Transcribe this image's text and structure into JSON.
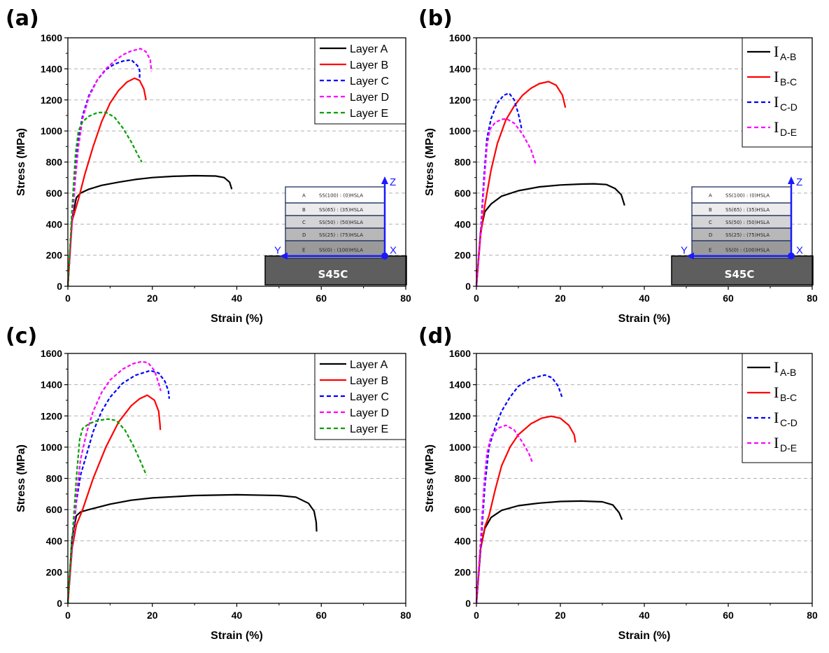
{
  "chart_data": [
    {
      "panel": "(a)",
      "type": "line",
      "xlabel": "Strain (%)",
      "ylabel": "Stress (MPa)",
      "xlim": [
        0,
        80
      ],
      "ylim": [
        0,
        1600
      ],
      "xticks": [
        0,
        20,
        40,
        60,
        80
      ],
      "yticks": [
        0,
        200,
        400,
        600,
        800,
        1000,
        1200,
        1400,
        1600
      ],
      "grid": "horizontal dashed",
      "legend_position": "top-right",
      "legend_style": "plain",
      "inset": true,
      "series": [
        {
          "name": "Layer A",
          "color": "#000000",
          "dash": false,
          "x": [
            0,
            1.0,
            2.0,
            3.0,
            5,
            8,
            12,
            16,
            20,
            25,
            30,
            35,
            37,
            38.3,
            38.8
          ],
          "y": [
            0,
            430,
            570,
            600,
            625,
            650,
            670,
            688,
            700,
            708,
            712,
            710,
            700,
            670,
            625
          ]
        },
        {
          "name": "Layer B",
          "color": "#ff0000",
          "dash": false,
          "x": [
            0,
            1.0,
            2.5,
            4,
            6,
            8,
            10,
            12,
            14,
            15.8,
            17,
            18.0,
            18.5
          ],
          "y": [
            0,
            420,
            560,
            720,
            900,
            1060,
            1180,
            1260,
            1315,
            1340,
            1325,
            1270,
            1200
          ]
        },
        {
          "name": "Layer C",
          "color": "#0000ff",
          "dash": true,
          "x": [
            0,
            1.0,
            1.8,
            2.5,
            3.5,
            5,
            7,
            9,
            11,
            13,
            15,
            16.5,
            17.0,
            17.0
          ],
          "y": [
            0,
            450,
            750,
            950,
            1100,
            1230,
            1330,
            1395,
            1430,
            1450,
            1458,
            1420,
            1390,
            1340
          ]
        },
        {
          "name": "Layer D",
          "color": "#ff00ff",
          "dash": true,
          "x": [
            0,
            1.0,
            1.8,
            2.5,
            3.5,
            5,
            7,
            9,
            11,
            13,
            15,
            17.2,
            18.5,
            19.5,
            19.8
          ],
          "y": [
            0,
            400,
            700,
            900,
            1080,
            1220,
            1330,
            1400,
            1450,
            1490,
            1515,
            1530,
            1510,
            1460,
            1385
          ]
        },
        {
          "name": "Layer E",
          "color": "#00a000",
          "dash": true,
          "x": [
            0,
            1.0,
            1.8,
            2.5,
            3.5,
            5,
            7,
            9,
            11,
            13,
            15,
            16.5,
            17.5
          ],
          "y": [
            0,
            500,
            850,
            1000,
            1060,
            1095,
            1118,
            1120,
            1090,
            1020,
            930,
            850,
            800
          ]
        }
      ]
    },
    {
      "panel": "(b)",
      "type": "line",
      "xlabel": "Strain (%)",
      "ylabel": "Stress (MPa)",
      "xlim": [
        0,
        80
      ],
      "ylim": [
        0,
        1600
      ],
      "xticks": [
        0,
        20,
        40,
        60,
        80
      ],
      "yticks": [
        0,
        200,
        400,
        600,
        800,
        1000,
        1200,
        1400,
        1600
      ],
      "grid": "horizontal dashed",
      "legend_position": "top-right",
      "legend_style": "interface",
      "inset": true,
      "series": [
        {
          "name": "I",
          "sub": "A-B",
          "color": "#000000",
          "dash": false,
          "x": [
            0,
            1.0,
            2.0,
            3.5,
            6,
            10,
            15,
            20,
            25,
            28,
            31,
            33,
            34.5,
            35.3
          ],
          "y": [
            0,
            350,
            480,
            530,
            580,
            615,
            640,
            652,
            658,
            660,
            655,
            630,
            590,
            520
          ]
        },
        {
          "name": "I",
          "sub": "B-C",
          "color": "#ff0000",
          "dash": false,
          "x": [
            0,
            1.0,
            2.0,
            3.5,
            5,
            7,
            9,
            11,
            13,
            15,
            17.2,
            19,
            20.5,
            21.2
          ],
          "y": [
            0,
            330,
            520,
            750,
            920,
            1070,
            1160,
            1230,
            1275,
            1305,
            1318,
            1295,
            1230,
            1150
          ]
        },
        {
          "name": "I",
          "sub": "C-D",
          "color": "#0000ff",
          "dash": true,
          "x": [
            0,
            1.0,
            1.8,
            2.5,
            3.5,
            5,
            6.5,
            7.8,
            9,
            10,
            10.8
          ],
          "y": [
            0,
            350,
            700,
            950,
            1080,
            1180,
            1230,
            1243,
            1200,
            1110,
            1010
          ]
        },
        {
          "name": "I",
          "sub": "D-E",
          "color": "#ff00ff",
          "dash": true,
          "x": [
            0,
            1.0,
            1.8,
            2.5,
            3.2,
            4.5,
            6,
            7.2,
            9,
            11,
            13,
            14.2
          ],
          "y": [
            0,
            330,
            650,
            900,
            1010,
            1055,
            1075,
            1078,
            1050,
            980,
            880,
            780
          ]
        }
      ]
    },
    {
      "panel": "(c)",
      "type": "line",
      "xlabel": "Strain (%)",
      "ylabel": "Stress (MPa)",
      "xlim": [
        0,
        80
      ],
      "ylim": [
        0,
        1600
      ],
      "xticks": [
        0,
        20,
        40,
        60,
        80
      ],
      "yticks": [
        0,
        200,
        400,
        600,
        800,
        1000,
        1200,
        1400,
        1600
      ],
      "grid": "horizontal dashed",
      "legend_position": "top-right",
      "legend_style": "plain",
      "inset": false,
      "series": [
        {
          "name": "Layer A",
          "color": "#000000",
          "dash": false,
          "x": [
            0,
            1.0,
            2.0,
            3.0,
            5,
            10,
            15,
            20,
            30,
            40,
            50,
            54,
            57,
            58.3,
            58.8,
            58.9
          ],
          "y": [
            0,
            420,
            560,
            585,
            600,
            635,
            660,
            675,
            690,
            695,
            690,
            680,
            640,
            590,
            520,
            460
          ]
        },
        {
          "name": "Layer B",
          "color": "#ff0000",
          "dash": false,
          "x": [
            0,
            1.0,
            2.0,
            3.5,
            6,
            9,
            12,
            15,
            17,
            18.8,
            20.5,
            21.5,
            21.8,
            21.9
          ],
          "y": [
            0,
            350,
            500,
            600,
            800,
            1000,
            1160,
            1265,
            1310,
            1333,
            1300,
            1230,
            1150,
            1110
          ]
        },
        {
          "name": "Layer C",
          "color": "#0000ff",
          "dash": true,
          "x": [
            0,
            1.0,
            2.0,
            3.0,
            4.5,
            6,
            8,
            10,
            13,
            16,
            19.5,
            21.5,
            23,
            23.8,
            24.0
          ],
          "y": [
            0,
            350,
            650,
            820,
            960,
            1100,
            1230,
            1320,
            1410,
            1460,
            1490,
            1475,
            1420,
            1360,
            1310
          ]
        },
        {
          "name": "Layer D",
          "color": "#ff00ff",
          "dash": true,
          "x": [
            0,
            1.0,
            2.0,
            3.0,
            4.5,
            6,
            8,
            10,
            13,
            15.5,
            17.5,
            19,
            20.5,
            21.5,
            22.0
          ],
          "y": [
            0,
            350,
            680,
            920,
            1100,
            1230,
            1350,
            1430,
            1500,
            1535,
            1548,
            1540,
            1490,
            1410,
            1360
          ]
        },
        {
          "name": "Layer E",
          "color": "#00a000",
          "dash": true,
          "x": [
            0,
            1.0,
            2.0,
            2.8,
            3.5,
            5,
            7,
            9.5,
            11.5,
            13.5,
            15.5,
            17.5,
            18.6
          ],
          "y": [
            0,
            400,
            800,
            1050,
            1120,
            1150,
            1170,
            1180,
            1170,
            1110,
            1010,
            890,
            820
          ]
        }
      ]
    },
    {
      "panel": "(d)",
      "type": "line",
      "xlabel": "Strain (%)",
      "ylabel": "Stress (MPa)",
      "xlim": [
        0,
        80
      ],
      "ylim": [
        0,
        1600
      ],
      "xticks": [
        0,
        20,
        40,
        60,
        80
      ],
      "yticks": [
        0,
        200,
        400,
        600,
        800,
        1000,
        1200,
        1400,
        1600
      ],
      "grid": "horizontal dashed",
      "legend_position": "top-right",
      "legend_style": "interface",
      "inset": false,
      "series": [
        {
          "name": "I",
          "sub": "A-B",
          "color": "#000000",
          "dash": false,
          "x": [
            0,
            1.0,
            2.0,
            3.5,
            6,
            10,
            15,
            20,
            25,
            30,
            32.5,
            34,
            34.7
          ],
          "y": [
            0,
            350,
            480,
            550,
            595,
            625,
            642,
            652,
            655,
            650,
            630,
            580,
            535
          ]
        },
        {
          "name": "I",
          "sub": "B-C",
          "color": "#ff0000",
          "dash": false,
          "x": [
            0,
            1.0,
            2.0,
            3.0,
            4.5,
            6,
            8,
            10,
            13,
            15.5,
            17.8,
            20,
            22,
            23.3,
            23.6
          ],
          "y": [
            0,
            350,
            490,
            560,
            730,
            880,
            1000,
            1080,
            1150,
            1185,
            1198,
            1185,
            1140,
            1080,
            1030
          ]
        },
        {
          "name": "I",
          "sub": "C-D",
          "color": "#0000ff",
          "dash": true,
          "x": [
            0,
            1.0,
            2.0,
            3.0,
            4.5,
            6,
            8,
            10,
            13,
            16.3,
            18,
            19.5,
            20.4
          ],
          "y": [
            0,
            350,
            750,
            1000,
            1130,
            1230,
            1320,
            1390,
            1440,
            1462,
            1445,
            1390,
            1320
          ]
        },
        {
          "name": "I",
          "sub": "D-E",
          "color": "#ff00ff",
          "dash": true,
          "x": [
            0,
            1.0,
            1.8,
            2.5,
            3.5,
            5,
            7,
            9,
            11,
            12.5,
            13.3
          ],
          "y": [
            0,
            400,
            750,
            960,
            1070,
            1120,
            1140,
            1110,
            1030,
            960,
            905
          ]
        }
      ]
    }
  ],
  "panels": [
    {
      "label": "(a)",
      "xlabel": "Strain (%)",
      "ylabel": "Stress (MPa)"
    },
    {
      "label": "(b)",
      "xlabel": "Strain (%)",
      "ylabel": "Stress (MPa)"
    },
    {
      "label": "(c)",
      "xlabel": "Strain (%)",
      "ylabel": "Stress (MPa)"
    },
    {
      "label": "(d)",
      "xlabel": "Strain (%)",
      "ylabel": "Stress (MPa)"
    }
  ],
  "inset": {
    "layers": [
      {
        "id": "A",
        "composition": "SS(100) : (0)HSLA",
        "fill": "#ffffff"
      },
      {
        "id": "B",
        "composition": "SS(65) : (35)HSLA",
        "fill": "#ececec"
      },
      {
        "id": "C",
        "composition": "SS(50) : (50)HSLA",
        "fill": "#d4d4d4"
      },
      {
        "id": "D",
        "composition": "SS(25) : (75)HSLA",
        "fill": "#b8b8b8"
      },
      {
        "id": "E",
        "composition": "SS(0) : (100)HSLA",
        "fill": "#9a9a9a"
      }
    ],
    "substrate": "S45C",
    "substrate_fill": "#5e5e5e",
    "axis_labels": {
      "z": "Z",
      "y": "Y",
      "x": "X"
    },
    "axis_color": "#1a1aff"
  }
}
